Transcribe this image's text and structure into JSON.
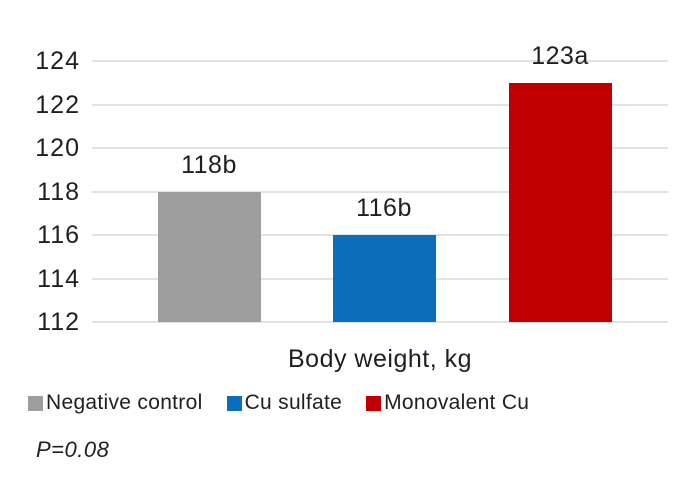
{
  "chart_data": {
    "type": "bar",
    "categories": [
      "Negative control",
      "Cu sulfate",
      "Monovalent Cu"
    ],
    "values": [
      118,
      116,
      123
    ],
    "data_labels": [
      "118b",
      "116b",
      "123a"
    ],
    "bar_colors": [
      "#9e9e9e",
      "#0a6ebd",
      "#c00000"
    ],
    "title": "Body weight, kg",
    "xlabel": "Body weight, kg",
    "ylabel": "",
    "ylim": [
      112,
      124
    ],
    "yticks": [
      112,
      114,
      116,
      118,
      120,
      122,
      124
    ],
    "grid": true,
    "gridline_color": "#e2e2e2",
    "legend_position": "bottom",
    "annotation": "P=0.08"
  },
  "legend": {
    "items": [
      {
        "label": "Negative control",
        "color": "#9e9e9e"
      },
      {
        "label": "Cu sulfate",
        "color": "#0a6ebd"
      },
      {
        "label": "Monovalent Cu",
        "color": "#c00000"
      }
    ]
  },
  "footnote": {
    "text": "P=0.08"
  }
}
